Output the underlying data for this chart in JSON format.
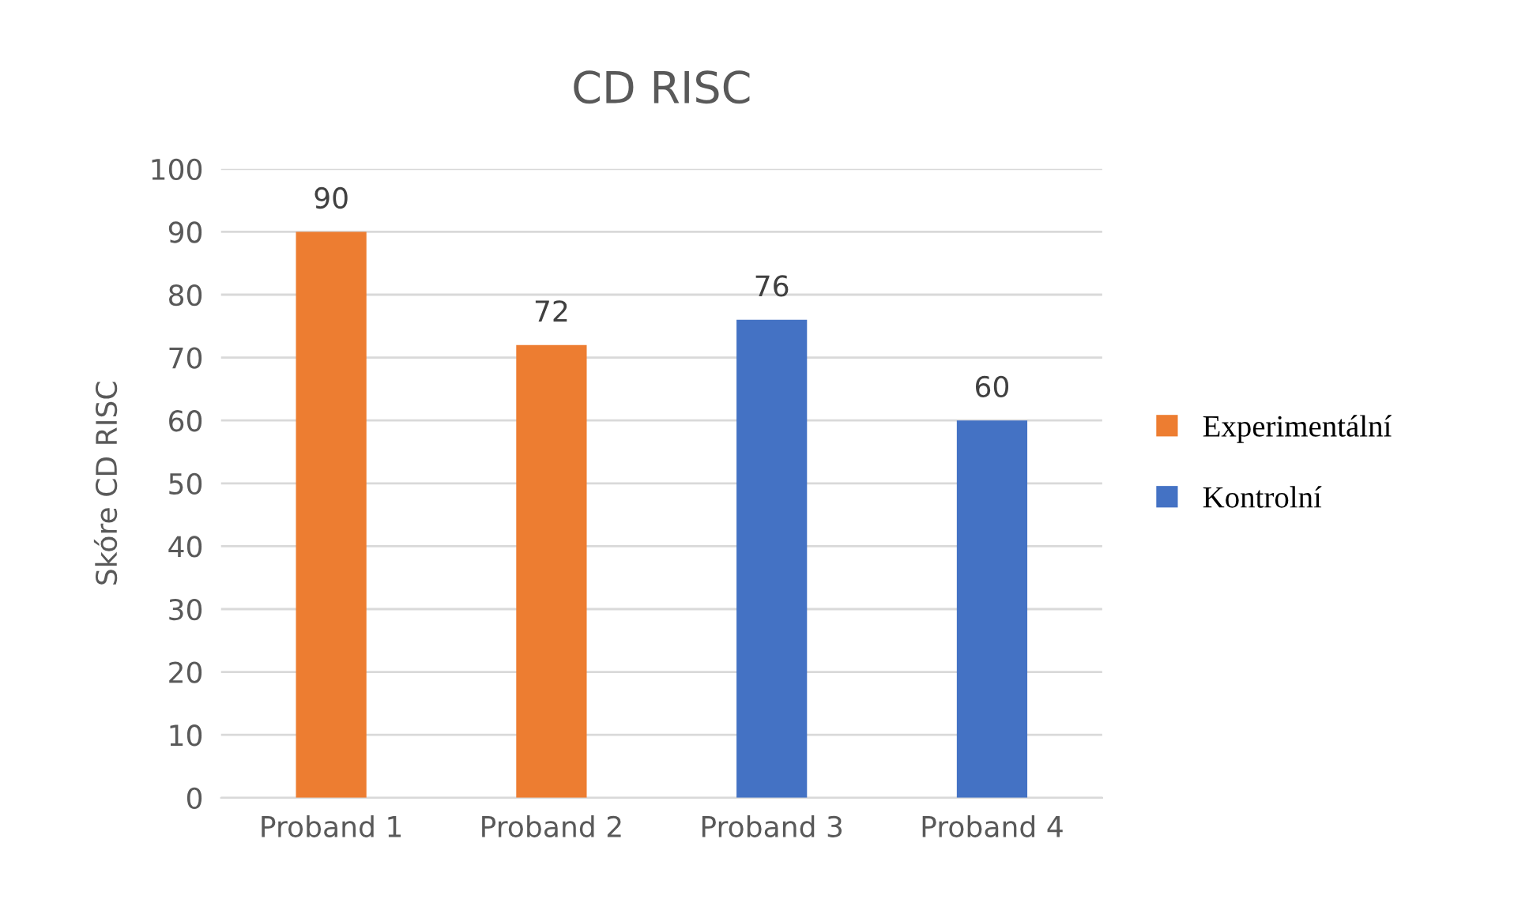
{
  "chart_data": {
    "type": "bar",
    "title": "CD RISC",
    "ylabel": "Skóre CD RISC",
    "categories": [
      "Proband 1",
      "Proband 2",
      "Proband 3",
      "Proband 4"
    ],
    "series": [
      {
        "name": "Experimentální",
        "color": "#ed7d31",
        "values": [
          90,
          72,
          null,
          null
        ]
      },
      {
        "name": "Kontrolní",
        "color": "#4472c4",
        "values": [
          null,
          null,
          76,
          60
        ]
      }
    ],
    "ylim": [
      0,
      100
    ],
    "yticks": [
      0,
      10,
      20,
      30,
      40,
      50,
      60,
      70,
      80,
      90,
      100
    ],
    "grid": "y",
    "legend": "right",
    "data_labels": true
  }
}
